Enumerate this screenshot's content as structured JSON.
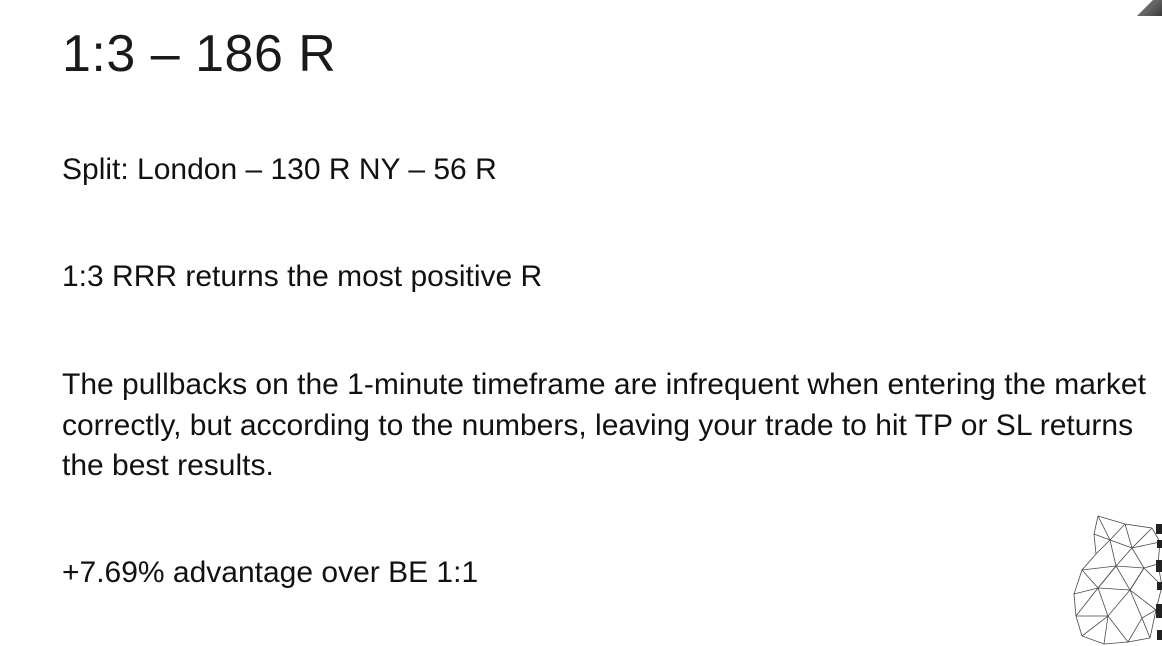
{
  "slide": {
    "title": "1:3 – 186 R",
    "split_text": "Split: London – 130 R NY – 56 R",
    "rrr_text": "1:3 RRR returns the most positive R",
    "paragraph": "The pullbacks on the 1-minute timeframe are infrequent when entering the market correctly, but according to the numbers, leaving your trade to hit TP or SL returns the best results.",
    "advantage_text": "+7.69% advantage over BE 1:1"
  },
  "icons": {
    "logo": "polygon-head-logo-icon",
    "corner": "corner-photo-fragment"
  }
}
